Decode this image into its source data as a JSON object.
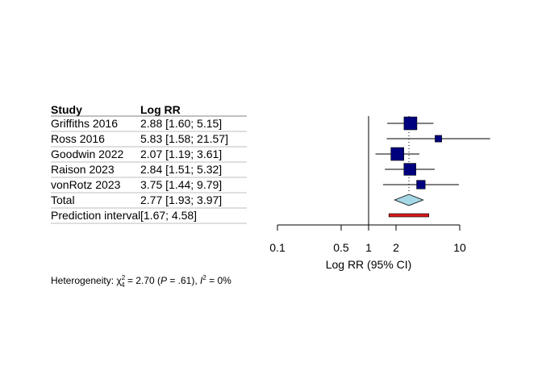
{
  "chart_data": {
    "type": "forest",
    "columns": {
      "study": "Study",
      "effect": "Log RR"
    },
    "studies": [
      {
        "name": "Griffiths 2016",
        "label": "2.88 [1.60;  5.15]",
        "rr": 2.88,
        "lo": 1.6,
        "hi": 5.15,
        "weight": 1.0
      },
      {
        "name": "Ross 2016",
        "label": "5.83 [1.58; 21.57]",
        "rr": 5.83,
        "lo": 1.58,
        "hi": 21.57,
        "weight": 0.35
      },
      {
        "name": "Goodwin 2022",
        "label": "2.07 [1.19;  3.61]",
        "rr": 2.07,
        "lo": 1.19,
        "hi": 3.61,
        "weight": 1.0
      },
      {
        "name": "Raison 2023",
        "label": "2.84 [1.51;  5.32]",
        "rr": 2.84,
        "lo": 1.51,
        "hi": 5.32,
        "weight": 0.9
      },
      {
        "name": "vonRotz 2023",
        "label": "3.75 [1.44;  9.79]",
        "rr": 3.75,
        "lo": 1.44,
        "hi": 9.79,
        "weight": 0.55
      }
    ],
    "total": {
      "name": "Total",
      "label": "2.77 [1.93;  3.97]",
      "rr": 2.77,
      "lo": 1.93,
      "hi": 3.97
    },
    "prediction": {
      "name": "Prediction interval",
      "label": "[1.67;  4.58]",
      "lo": 1.67,
      "hi": 4.58
    },
    "x_axis": {
      "label": "Log RR (95% CI)",
      "scale": "log",
      "ticks": [
        0.1,
        0.5,
        1,
        2,
        10
      ],
      "tick_labels": [
        "0.1",
        "0.5",
        "1",
        "2",
        "10"
      ],
      "xlim": [
        0.1,
        25
      ]
    },
    "reference_line": 1,
    "heterogeneity": {
      "prefix": "Heterogeneity: ",
      "chi": "χ",
      "sup": "2",
      "sub": "4",
      "stat": " = 2.70 (",
      "p": "P",
      "p_rest": " = .61), ",
      "i": "I",
      "i_sup": "2",
      "i_rest": " = 0%"
    },
    "colors": {
      "square": "#00007F",
      "diamond": "#A6D8E6",
      "prediction": "#D51A1A",
      "line": "#000000",
      "rule": "#BFBFBF"
    }
  }
}
